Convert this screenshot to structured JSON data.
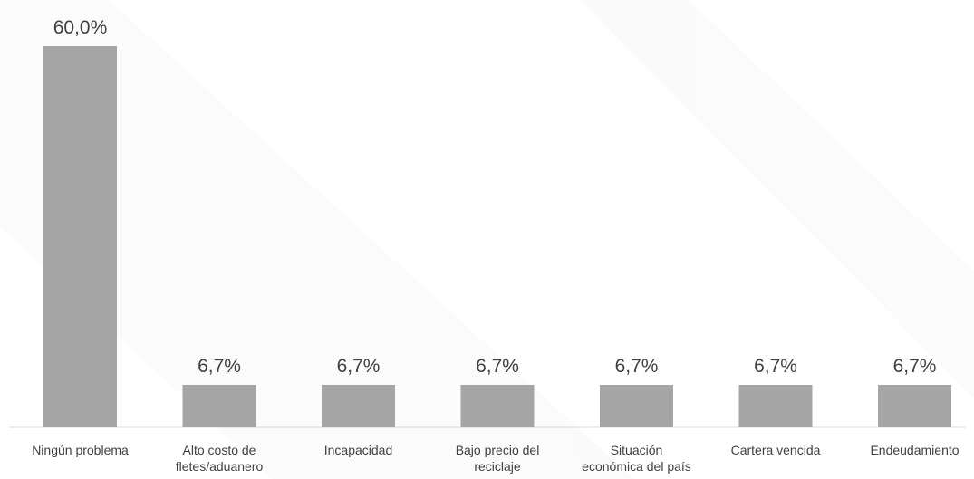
{
  "chart_data": {
    "type": "bar",
    "categories": [
      [
        "Ningún problema"
      ],
      [
        "Alto costo de",
        "fletes/aduanero"
      ],
      [
        "Incapacidad"
      ],
      [
        "Bajo precio del",
        "reciclaje"
      ],
      [
        "Situación",
        "económica del país"
      ],
      [
        "Cartera vencida"
      ],
      [
        "Endeudamiento"
      ]
    ],
    "values": [
      60.0,
      6.7,
      6.7,
      6.7,
      6.7,
      6.7,
      6.7
    ],
    "value_labels": [
      "60,0%",
      "6,7%",
      "6,7%",
      "6,7%",
      "6,7%",
      "6,7%",
      "6,7%"
    ],
    "title": "",
    "xlabel": "",
    "ylabel": "",
    "ylim": [
      0,
      60.0
    ],
    "bar_color": "#a5a5a5",
    "axis_color": "#d9d9d9",
    "text_color": "#404040",
    "grid": false,
    "legend": "none"
  }
}
